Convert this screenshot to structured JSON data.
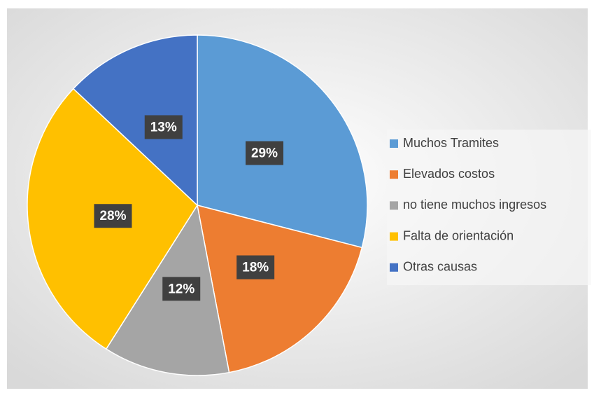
{
  "chart_data": {
    "type": "pie",
    "categories": [
      "Muchos Tramites",
      "Elevados costos",
      "no tiene muchos ingresos",
      "Falta de orientación",
      "Otras causas"
    ],
    "values": [
      29,
      18,
      12,
      28,
      13
    ],
    "value_labels": [
      "29%",
      "18%",
      "12%",
      "28%",
      "13%"
    ],
    "colors": [
      "#5b9bd5",
      "#ed7d31",
      "#a5a5a5",
      "#ffc000",
      "#4472c4"
    ],
    "legend": "right"
  }
}
